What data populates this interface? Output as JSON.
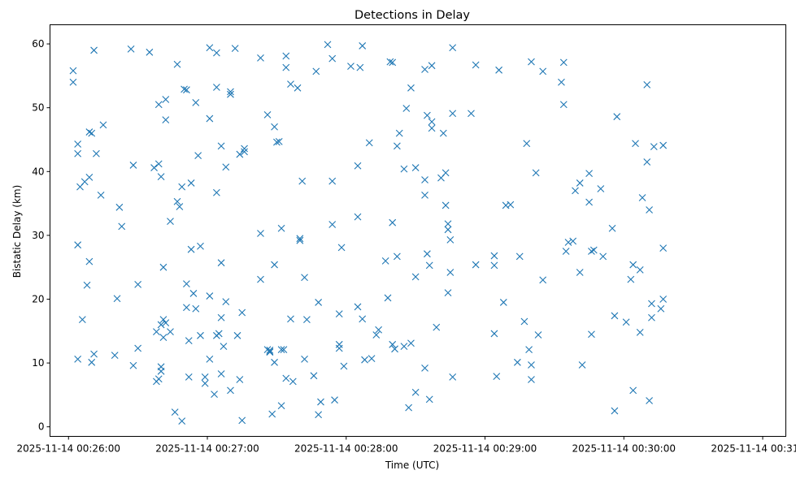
{
  "chart_data": {
    "type": "scatter",
    "title": "Detections in Delay",
    "xlabel": "Time (UTC)",
    "ylabel": "Bistatic Delay (km)",
    "marker": "x",
    "color": "#1f77b4",
    "grid": false,
    "legend": "none",
    "x_unit": "time (MM:SS after 00:26:00 on 2025-11-14)",
    "xlim": [
      "2025-11-14 00:25:52",
      "2025-11-14 00:31:10"
    ],
    "ylim": [
      -1.5,
      63
    ],
    "x_ticks": [
      {
        "value": "2025-11-14 00:26:00",
        "label": "2025-11-14 00:26:00"
      },
      {
        "value": "2025-11-14 00:27:00",
        "label": "2025-11-14 00:27:00"
      },
      {
        "value": "2025-11-14 00:28:00",
        "label": "2025-11-14 00:28:00"
      },
      {
        "value": "2025-11-14 00:29:00",
        "label": "2025-11-14 00:29:00"
      },
      {
        "value": "2025-11-14 00:30:00",
        "label": "2025-11-14 00:30:00"
      },
      {
        "value": "2025-11-14 00:31:00",
        "label": "2025-11-14 00:31:00"
      }
    ],
    "y_ticks": [
      0,
      10,
      20,
      30,
      40,
      50,
      60
    ],
    "points": [
      [
        "00:26:02",
        55.8
      ],
      [
        "00:26:02",
        54.0
      ],
      [
        "00:26:04",
        44.3
      ],
      [
        "00:26:04",
        42.8
      ],
      [
        "00:26:05",
        37.6
      ],
      [
        "00:26:07",
        38.4
      ],
      [
        "00:26:09",
        39.1
      ],
      [
        "00:26:09",
        46.2
      ],
      [
        "00:26:10",
        46.0
      ],
      [
        "00:26:11",
        59.0
      ],
      [
        "00:26:12",
        42.8
      ],
      [
        "00:26:15",
        47.3
      ],
      [
        "00:26:04",
        28.5
      ],
      [
        "00:26:08",
        22.2
      ],
      [
        "00:26:09",
        25.9
      ],
      [
        "00:26:06",
        16.8
      ],
      [
        "00:26:04",
        10.6
      ],
      [
        "00:26:10",
        10.1
      ],
      [
        "00:26:11",
        11.4
      ],
      [
        "00:26:14",
        36.3
      ],
      [
        "00:26:22",
        34.4
      ],
      [
        "00:26:21",
        20.1
      ],
      [
        "00:26:20",
        11.2
      ],
      [
        "00:26:23",
        31.4
      ],
      [
        "00:26:27",
        59.2
      ],
      [
        "00:26:28",
        41.0
      ],
      [
        "00:26:30",
        22.3
      ],
      [
        "00:26:28",
        9.6
      ],
      [
        "00:26:30",
        12.3
      ],
      [
        "00:26:35",
        58.7
      ],
      [
        "00:26:37",
        40.6
      ],
      [
        "00:26:39",
        41.2
      ],
      [
        "00:26:39",
        50.5
      ],
      [
        "00:26:40",
        39.2
      ],
      [
        "00:26:42",
        48.1
      ],
      [
        "00:26:42",
        51.3
      ],
      [
        "00:26:38",
        14.9
      ],
      [
        "00:26:38",
        7.1
      ],
      [
        "00:26:39",
        7.5
      ],
      [
        "00:26:40",
        16.0
      ],
      [
        "00:26:41",
        16.8
      ],
      [
        "00:26:41",
        25.0
      ],
      [
        "00:26:41",
        14.0
      ],
      [
        "00:26:42",
        16.3
      ],
      [
        "00:26:40",
        9.4
      ],
      [
        "00:26:40",
        8.7
      ],
      [
        "00:26:44",
        14.9
      ],
      [
        "00:26:44",
        32.2
      ],
      [
        "00:26:46",
        2.3
      ],
      [
        "00:26:47",
        56.8
      ],
      [
        "00:26:47",
        35.3
      ],
      [
        "00:26:48",
        34.5
      ],
      [
        "00:26:49",
        37.6
      ],
      [
        "00:26:50",
        52.9
      ],
      [
        "00:26:51",
        52.8
      ],
      [
        "00:26:51",
        22.4
      ],
      [
        "00:26:51",
        18.7
      ],
      [
        "00:26:52",
        13.5
      ],
      [
        "00:26:52",
        7.8
      ],
      [
        "00:26:49",
        0.9
      ],
      [
        "00:26:53",
        38.2
      ],
      [
        "00:26:53",
        27.8
      ],
      [
        "00:26:54",
        20.9
      ],
      [
        "00:26:55",
        50.8
      ],
      [
        "00:26:56",
        42.5
      ],
      [
        "00:26:55",
        18.5
      ],
      [
        "00:26:57",
        28.3
      ],
      [
        "00:26:57",
        14.3
      ],
      [
        "00:26:59",
        7.8
      ],
      [
        "00:26:59",
        6.8
      ],
      [
        "00:27:01",
        59.4
      ],
      [
        "00:27:01",
        48.3
      ],
      [
        "00:27:01",
        20.5
      ],
      [
        "00:27:01",
        10.6
      ],
      [
        "00:27:03",
        5.1
      ],
      [
        "00:27:04",
        58.6
      ],
      [
        "00:27:04",
        53.2
      ],
      [
        "00:27:04",
        36.7
      ],
      [
        "00:27:04",
        14.3
      ],
      [
        "00:27:05",
        14.6
      ],
      [
        "00:27:06",
        44.0
      ],
      [
        "00:27:06",
        25.7
      ],
      [
        "00:27:06",
        17.1
      ],
      [
        "00:27:06",
        8.3
      ],
      [
        "00:27:07",
        12.6
      ],
      [
        "00:27:08",
        40.7
      ],
      [
        "00:27:08",
        19.6
      ],
      [
        "00:27:10",
        52.5
      ],
      [
        "00:27:10",
        52.1
      ],
      [
        "00:27:10",
        5.7
      ],
      [
        "00:27:12",
        59.3
      ],
      [
        "00:27:13",
        14.3
      ],
      [
        "00:27:14",
        42.7
      ],
      [
        "00:27:14",
        7.4
      ],
      [
        "00:27:15",
        17.9
      ],
      [
        "00:27:15",
        1.0
      ],
      [
        "00:27:16",
        43.1
      ],
      [
        "00:27:16",
        43.6
      ],
      [
        "00:27:23",
        57.8
      ],
      [
        "00:27:23",
        30.3
      ],
      [
        "00:27:23",
        23.1
      ],
      [
        "00:27:26",
        48.9
      ],
      [
        "00:27:26",
        12.1
      ],
      [
        "00:27:27",
        11.7
      ],
      [
        "00:27:27",
        12.0
      ],
      [
        "00:27:27",
        11.8
      ],
      [
        "00:27:28",
        2.0
      ],
      [
        "00:27:29",
        47.0
      ],
      [
        "00:27:29",
        25.4
      ],
      [
        "00:27:29",
        10.1
      ],
      [
        "00:27:30",
        44.6
      ],
      [
        "00:27:31",
        44.7
      ],
      [
        "00:27:32",
        31.1
      ],
      [
        "00:27:32",
        12.1
      ],
      [
        "00:27:32",
        3.3
      ],
      [
        "00:27:33",
        12.1
      ],
      [
        "00:27:34",
        58.1
      ],
      [
        "00:27:34",
        56.3
      ],
      [
        "00:27:34",
        7.6
      ],
      [
        "00:27:36",
        53.7
      ],
      [
        "00:27:36",
        16.9
      ],
      [
        "00:27:37",
        7.1
      ],
      [
        "00:27:39",
        53.1
      ],
      [
        "00:27:40",
        29.5
      ],
      [
        "00:27:40",
        29.2
      ],
      [
        "00:27:41",
        38.5
      ],
      [
        "00:27:42",
        23.4
      ],
      [
        "00:27:42",
        10.6
      ],
      [
        "00:27:43",
        16.8
      ],
      [
        "00:27:47",
        55.7
      ],
      [
        "00:27:46",
        8.0
      ],
      [
        "00:27:48",
        19.5
      ],
      [
        "00:27:48",
        1.9
      ],
      [
        "00:27:49",
        3.9
      ],
      [
        "00:27:52",
        59.9
      ],
      [
        "00:27:54",
        57.7
      ],
      [
        "00:27:54",
        38.5
      ],
      [
        "00:27:54",
        31.7
      ],
      [
        "00:27:55",
        4.2
      ],
      [
        "00:27:57",
        17.7
      ],
      [
        "00:27:57",
        12.9
      ],
      [
        "00:27:57",
        12.3
      ],
      [
        "00:27:58",
        28.1
      ],
      [
        "00:27:59",
        9.5
      ],
      [
        "00:28:02",
        56.5
      ],
      [
        "00:28:05",
        40.9
      ],
      [
        "00:28:05",
        32.9
      ],
      [
        "00:28:05",
        18.8
      ],
      [
        "00:28:06",
        56.3
      ],
      [
        "00:28:07",
        59.7
      ],
      [
        "00:28:07",
        16.9
      ],
      [
        "00:28:08",
        10.5
      ],
      [
        "00:28:10",
        44.5
      ],
      [
        "00:28:11",
        10.7
      ],
      [
        "00:28:13",
        14.4
      ],
      [
        "00:28:14",
        15.2
      ],
      [
        "00:28:17",
        26.0
      ],
      [
        "00:28:18",
        20.2
      ],
      [
        "00:28:19",
        57.2
      ],
      [
        "00:28:20",
        57.1
      ],
      [
        "00:28:20",
        32.0
      ],
      [
        "00:28:20",
        12.9
      ],
      [
        "00:28:21",
        12.2
      ],
      [
        "00:28:22",
        44.0
      ],
      [
        "00:28:22",
        26.7
      ],
      [
        "00:28:23",
        46.0
      ],
      [
        "00:28:25",
        40.4
      ],
      [
        "00:28:25",
        12.6
      ],
      [
        "00:28:26",
        49.9
      ],
      [
        "00:28:28",
        53.1
      ],
      [
        "00:28:28",
        13.1
      ],
      [
        "00:28:27",
        3.0
      ],
      [
        "00:28:30",
        40.6
      ],
      [
        "00:28:30",
        23.5
      ],
      [
        "00:28:30",
        5.4
      ],
      [
        "00:28:34",
        56.0
      ],
      [
        "00:28:35",
        48.8
      ],
      [
        "00:28:34",
        38.7
      ],
      [
        "00:28:34",
        36.3
      ],
      [
        "00:28:35",
        27.1
      ],
      [
        "00:28:36",
        25.3
      ],
      [
        "00:28:34",
        9.2
      ],
      [
        "00:28:36",
        4.3
      ],
      [
        "00:28:37",
        56.6
      ],
      [
        "00:28:37",
        47.8
      ],
      [
        "00:28:37",
        46.8
      ],
      [
        "00:28:39",
        15.6
      ],
      [
        "00:28:41",
        39.0
      ],
      [
        "00:28:42",
        46.0
      ],
      [
        "00:28:43",
        39.8
      ],
      [
        "00:28:43",
        34.7
      ],
      [
        "00:28:44",
        31.8
      ],
      [
        "00:28:44",
        30.9
      ],
      [
        "00:28:45",
        29.3
      ],
      [
        "00:28:44",
        21.0
      ],
      [
        "00:28:45",
        24.2
      ],
      [
        "00:28:46",
        59.4
      ],
      [
        "00:28:46",
        49.1
      ],
      [
        "00:28:46",
        7.8
      ],
      [
        "00:28:54",
        49.1
      ],
      [
        "00:28:56",
        56.7
      ],
      [
        "00:28:56",
        25.4
      ],
      [
        "00:29:04",
        26.8
      ],
      [
        "00:29:04",
        25.3
      ],
      [
        "00:29:04",
        14.6
      ],
      [
        "00:29:05",
        7.9
      ],
      [
        "00:29:06",
        55.9
      ],
      [
        "00:29:08",
        19.5
      ],
      [
        "00:29:09",
        34.7
      ],
      [
        "00:29:11",
        34.8
      ],
      [
        "00:29:14",
        10.1
      ],
      [
        "00:29:15",
        26.7
      ],
      [
        "00:29:17",
        16.5
      ],
      [
        "00:29:18",
        44.4
      ],
      [
        "00:29:19",
        12.1
      ],
      [
        "00:29:20",
        7.4
      ],
      [
        "00:29:20",
        9.7
      ],
      [
        "00:29:20",
        57.2
      ],
      [
        "00:29:22",
        39.8
      ],
      [
        "00:29:23",
        14.4
      ],
      [
        "00:29:25",
        55.7
      ],
      [
        "00:29:25",
        23.0
      ],
      [
        "00:29:34",
        57.1
      ],
      [
        "00:29:33",
        54.0
      ],
      [
        "00:29:34",
        50.5
      ],
      [
        "00:29:35",
        27.5
      ],
      [
        "00:29:36",
        28.9
      ],
      [
        "00:29:38",
        29.1
      ],
      [
        "00:29:39",
        37.0
      ],
      [
        "00:29:41",
        24.2
      ],
      [
        "00:29:41",
        38.2
      ],
      [
        "00:29:42",
        9.7
      ],
      [
        "00:29:45",
        39.7
      ],
      [
        "00:29:45",
        35.2
      ],
      [
        "00:29:46",
        14.5
      ],
      [
        "00:29:46",
        27.5
      ],
      [
        "00:29:47",
        27.7
      ],
      [
        "00:29:50",
        37.3
      ],
      [
        "00:29:51",
        26.7
      ],
      [
        "00:29:55",
        31.1
      ],
      [
        "00:29:57",
        48.6
      ],
      [
        "00:29:56",
        17.4
      ],
      [
        "00:29:56",
        2.5
      ],
      [
        "00:30:01",
        16.4
      ],
      [
        "00:30:03",
        23.1
      ],
      [
        "00:30:04",
        25.4
      ],
      [
        "00:30:04",
        5.7
      ],
      [
        "00:30:05",
        44.4
      ],
      [
        "00:30:07",
        24.6
      ],
      [
        "00:30:07",
        14.8
      ],
      [
        "00:30:08",
        35.9
      ],
      [
        "00:30:10",
        41.5
      ],
      [
        "00:30:10",
        53.6
      ],
      [
        "00:30:11",
        34.0
      ],
      [
        "00:30:12",
        19.3
      ],
      [
        "00:30:12",
        17.1
      ],
      [
        "00:30:11",
        4.1
      ],
      [
        "00:30:13",
        43.9
      ],
      [
        "00:30:17",
        44.1
      ],
      [
        "00:30:17",
        28.0
      ],
      [
        "00:30:17",
        20.0
      ],
      [
        "00:30:16",
        18.5
      ]
    ]
  }
}
